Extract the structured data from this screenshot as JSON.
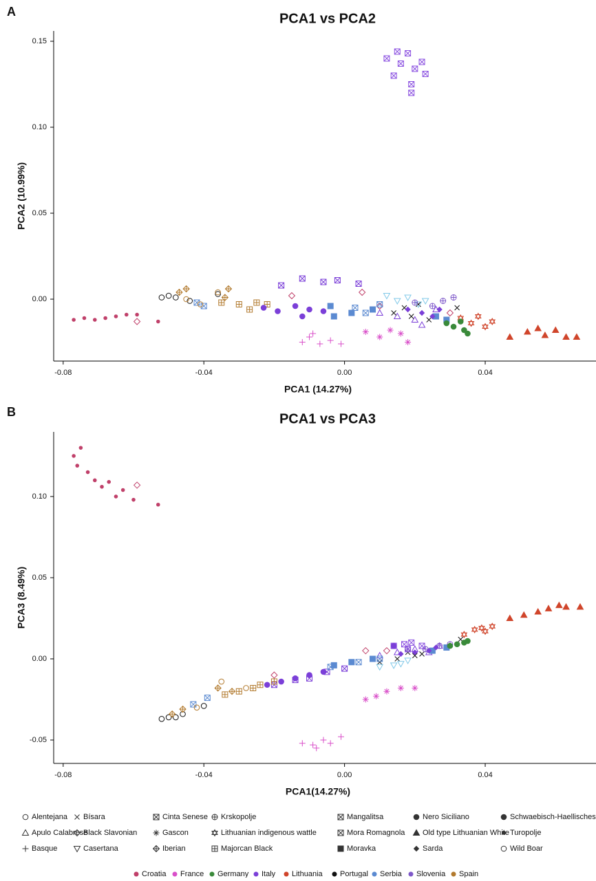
{
  "chart_data": [
    {
      "type": "scatter",
      "panel_label": "A",
      "title": "PCA1 vs PCA2",
      "xlabel": "PCA1 (14.27%)",
      "ylabel": "PCA2 (10.99%)",
      "xlim": [
        -0.0827,
        0.0715
      ],
      "ylim": [
        -0.036,
        0.156
      ],
      "xticks": [
        -0.08,
        -0.04,
        {
          "value": 0,
          "label": "0.00"
        },
        0.04
      ],
      "yticks": [
        {
          "value": 0,
          "label": "0.00"
        },
        0.05,
        {
          "value": 0.1,
          "label": "0.10"
        },
        0.15
      ],
      "series": [
        {
          "name": "Alentejana",
          "color": "#111111",
          "marker": "circle-open",
          "x": [
            -0.052,
            -0.05,
            -0.048,
            -0.044,
            -0.036
          ],
          "values": [
            0.001,
            0.002,
            0.001,
            -0.001,
            0.003
          ]
        },
        {
          "name": "Apulo Calabrese",
          "color": "#7b3fd8",
          "marker": "triangle-open",
          "x": [
            0.01,
            0.015,
            0.02,
            0.022,
            0.026
          ],
          "values": [
            -0.008,
            -0.01,
            -0.012,
            -0.015,
            -0.006
          ]
        },
        {
          "name": "Basque",
          "color": "#d94fc9",
          "marker": "plus",
          "x": [
            -0.012,
            -0.01,
            -0.007,
            -0.004,
            -0.001,
            -0.009
          ],
          "values": [
            -0.025,
            -0.022,
            -0.026,
            -0.024,
            -0.026,
            -0.02
          ]
        },
        {
          "name": "Bísara",
          "color": "#111111",
          "marker": "cross",
          "x": [
            0.014,
            0.017,
            0.019,
            0.021,
            0.024,
            0.032
          ],
          "values": [
            -0.008,
            -0.005,
            -0.01,
            -0.003,
            -0.012,
            -0.005
          ]
        },
        {
          "name": "Black Slavonian",
          "color": "#c0406a",
          "marker": "diamond-open",
          "x": [
            -0.059,
            -0.015,
            0.005,
            0.01,
            0.03
          ],
          "values": [
            -0.013,
            0.002,
            0.004,
            -0.004,
            -0.008
          ]
        },
        {
          "name": "Casertana",
          "color": "#80c8e8",
          "marker": "triangle-down-open",
          "x": [
            0.012,
            0.015,
            0.018,
            0.021,
            0.023
          ],
          "values": [
            0.002,
            -0.001,
            0.001,
            -0.003,
            -0.001
          ]
        },
        {
          "name": "Cinta Senese",
          "color": "#7b3fd8",
          "marker": "square-x",
          "x": [
            -0.018,
            -0.012,
            -0.006,
            -0.002,
            0.004
          ],
          "values": [
            0.008,
            0.012,
            0.01,
            0.011,
            0.009
          ]
        },
        {
          "name": "Gascon",
          "color": "#d94fc9",
          "marker": "asterisk",
          "x": [
            0.006,
            0.01,
            0.013,
            0.016,
            0.018
          ],
          "values": [
            -0.019,
            -0.022,
            -0.018,
            -0.02,
            -0.025
          ]
        },
        {
          "name": "Iberian",
          "color": "#b27a2e",
          "marker": "diamond-plus",
          "x": [
            -0.047,
            -0.045,
            -0.034,
            -0.033
          ],
          "values": [
            0.004,
            0.006,
            0.001,
            0.006
          ]
        },
        {
          "name": "Krskopolje",
          "color": "#7e58c9",
          "marker": "circle-plus",
          "x": [
            0.02,
            0.025,
            0.028,
            0.031
          ],
          "values": [
            -0.002,
            -0.004,
            -0.001,
            0.001
          ]
        },
        {
          "name": "Lithuanian indigenous wattle",
          "color": "#d0452b",
          "marker": "star-david",
          "x": [
            0.033,
            0.036,
            0.038,
            0.04,
            0.042
          ],
          "values": [
            -0.011,
            -0.014,
            -0.01,
            -0.016,
            -0.013
          ]
        },
        {
          "name": "Majorcan Black",
          "color": "#b27a2e",
          "marker": "square-plus",
          "x": [
            -0.035,
            -0.03,
            -0.027,
            -0.025,
            -0.022
          ],
          "values": [
            -0.002,
            -0.003,
            -0.006,
            -0.002,
            -0.003
          ]
        },
        {
          "name": "Mangalitsa",
          "color": "#5b8ad1",
          "marker": "square-x",
          "x": [
            -0.042,
            -0.04,
            0.003,
            0.006,
            0.01
          ],
          "values": [
            -0.002,
            -0.004,
            -0.005,
            -0.008,
            -0.003
          ]
        },
        {
          "name": "Mora Romagnola",
          "color": "#8a4fe0",
          "marker": "square-x",
          "x": [
            0.012,
            0.014,
            0.016,
            0.018,
            0.019,
            0.02,
            0.022,
            0.023,
            0.019,
            0.015
          ],
          "values": [
            0.14,
            0.13,
            0.137,
            0.143,
            0.125,
            0.134,
            0.138,
            0.131,
            0.12,
            0.144
          ]
        },
        {
          "name": "Moravka",
          "color": "#5b8ad1",
          "marker": "square-filled",
          "x": [
            -0.004,
            -0.003,
            0.002,
            0.008,
            0.026,
            0.029
          ],
          "values": [
            -0.004,
            -0.01,
            -0.008,
            -0.006,
            -0.01,
            -0.012
          ]
        },
        {
          "name": "Nero Siciliano",
          "color": "#7b3fd8",
          "marker": "circle-filled",
          "x": [
            -0.023,
            -0.019,
            -0.014,
            -0.01,
            -0.006,
            -0.012
          ],
          "values": [
            -0.005,
            -0.007,
            -0.004,
            -0.006,
            -0.007,
            -0.01
          ]
        },
        {
          "name": "Old type Lithuanian White",
          "color": "#d0452b",
          "marker": "triangle-filled",
          "x": [
            0.047,
            0.052,
            0.055,
            0.057,
            0.06,
            0.063,
            0.066
          ],
          "values": [
            -0.022,
            -0.019,
            -0.017,
            -0.021,
            -0.018,
            -0.022,
            -0.022
          ]
        },
        {
          "name": "Sarda",
          "color": "#7b3fd8",
          "marker": "diamond-filled",
          "x": [
            0.018,
            0.022,
            0.025,
            0.027
          ],
          "values": [
            -0.006,
            -0.008,
            -0.01,
            -0.006
          ]
        },
        {
          "name": "Schwaebisch-Haellisches",
          "color": "#3a8a3a",
          "marker": "circle-filled",
          "x": [
            0.029,
            0.031,
            0.033,
            0.034,
            0.035
          ],
          "values": [
            -0.014,
            -0.016,
            -0.013,
            -0.018,
            -0.02
          ]
        },
        {
          "name": "Turopolje",
          "color": "#c0406a",
          "marker": "dot",
          "x": [
            -0.077,
            -0.074,
            -0.071,
            -0.068,
            -0.065,
            -0.062,
            -0.059,
            -0.053
          ],
          "values": [
            -0.012,
            -0.011,
            -0.012,
            -0.011,
            -0.01,
            -0.009,
            -0.009,
            -0.013
          ]
        },
        {
          "name": "Wild Boar",
          "color": "#b27a2e",
          "marker": "circle-open",
          "x": [
            -0.036,
            -0.045,
            -0.041
          ],
          "values": [
            0.004,
            0.0,
            -0.003
          ]
        }
      ]
    },
    {
      "type": "scatter",
      "panel_label": "B",
      "title": "PCA1 vs PCA3",
      "xlabel": "PCA1(14.27%)",
      "ylabel": "PCA3 (8.49%)",
      "xlim": [
        -0.0827,
        0.0715
      ],
      "ylim": [
        -0.0644,
        0.1398
      ],
      "xticks": [
        -0.08,
        -0.04,
        {
          "value": 0,
          "label": "0.00"
        },
        0.04
      ],
      "yticks": [
        -0.05,
        {
          "value": 0,
          "label": "0.00"
        },
        0.05,
        {
          "value": 0.1,
          "label": "0.10"
        }
      ],
      "series": [
        {
          "x": [
            -0.052,
            -0.05,
            -0.048,
            -0.046,
            -0.04
          ],
          "values": [
            -0.037,
            -0.036,
            -0.036,
            -0.034,
            -0.029
          ]
        },
        {
          "x": [
            0.01,
            0.015,
            0.02,
            0.024,
            0.027
          ],
          "values": [
            0.002,
            0.004,
            0.006,
            0.004,
            0.008
          ]
        },
        {
          "x": [
            -0.012,
            -0.009,
            -0.006,
            -0.004,
            -0.001,
            -0.008
          ],
          "values": [
            -0.052,
            -0.053,
            -0.05,
            -0.052,
            -0.048,
            -0.055
          ]
        },
        {
          "x": [
            0.01,
            0.015,
            0.018,
            0.02,
            0.022,
            0.033
          ],
          "values": [
            -0.002,
            0.0,
            0.004,
            0.002,
            0.003,
            0.012
          ]
        },
        {
          "x": [
            -0.059,
            -0.02,
            0.006,
            0.012
          ],
          "values": [
            0.107,
            -0.01,
            0.005,
            0.005
          ]
        },
        {
          "x": [
            0.01,
            0.014,
            0.016,
            0.018
          ],
          "values": [
            -0.005,
            -0.004,
            -0.003,
            -0.001
          ]
        },
        {
          "x": [
            -0.02,
            -0.014,
            -0.01,
            -0.005,
            0.0
          ],
          "values": [
            -0.016,
            -0.013,
            -0.012,
            -0.008,
            -0.006
          ]
        },
        {
          "x": [
            0.006,
            0.009,
            0.012,
            0.016,
            0.02
          ],
          "values": [
            -0.025,
            -0.023,
            -0.02,
            -0.018,
            -0.018
          ]
        },
        {
          "x": [
            -0.049,
            -0.046,
            -0.036,
            -0.032
          ],
          "values": [
            -0.034,
            -0.031,
            -0.018,
            -0.02
          ]
        },
        {
          "x": [
            0.018,
            0.023,
            0.027,
            0.03
          ],
          "values": [
            0.006,
            0.006,
            0.008,
            0.009
          ]
        },
        {
          "x": [
            0.034,
            0.037,
            0.039,
            0.042,
            0.04
          ],
          "values": [
            0.015,
            0.018,
            0.019,
            0.02,
            0.017
          ]
        },
        {
          "x": [
            -0.034,
            -0.03,
            -0.026,
            -0.024,
            -0.02
          ],
          "values": [
            -0.022,
            -0.02,
            -0.018,
            -0.016,
            -0.014
          ]
        },
        {
          "x": [
            -0.043,
            -0.039,
            -0.004,
            0.004,
            0.01
          ],
          "values": [
            -0.028,
            -0.024,
            -0.005,
            -0.002,
            0.0
          ]
        },
        {
          "x": [
            0.014,
            0.017,
            0.019,
            0.022,
            0.018
          ],
          "values": [
            0.008,
            0.009,
            0.01,
            0.008,
            0.006
          ]
        },
        {
          "x": [
            -0.003,
            0.002,
            0.008,
            0.025,
            0.029
          ],
          "values": [
            -0.004,
            -0.002,
            0.0,
            0.005,
            0.007
          ]
        },
        {
          "x": [
            -0.022,
            -0.018,
            -0.014,
            -0.01,
            -0.006,
            0.014
          ],
          "values": [
            -0.016,
            -0.014,
            -0.012,
            -0.01,
            -0.008,
            0.008
          ]
        },
        {
          "x": [
            0.047,
            0.051,
            0.055,
            0.058,
            0.061,
            0.063,
            0.067
          ],
          "values": [
            0.025,
            0.027,
            0.029,
            0.031,
            0.033,
            0.032,
            0.032
          ]
        },
        {
          "x": [
            0.016,
            0.02,
            0.024,
            0.026
          ],
          "values": [
            0.003,
            0.004,
            0.005,
            0.007
          ]
        },
        {
          "x": [
            0.03,
            0.032,
            0.034,
            0.035
          ],
          "values": [
            0.008,
            0.009,
            0.01,
            0.011
          ]
        },
        {
          "x": [
            -0.077,
            -0.076,
            -0.075,
            -0.073,
            -0.071,
            -0.069,
            -0.067,
            -0.065,
            -0.063,
            -0.06,
            -0.053
          ],
          "values": [
            0.125,
            0.119,
            0.13,
            0.115,
            0.11,
            0.106,
            0.109,
            0.1,
            0.104,
            0.098,
            0.095
          ]
        },
        {
          "x": [
            -0.035,
            -0.042,
            -0.028
          ],
          "values": [
            -0.014,
            -0.03,
            -0.018
          ]
        }
      ]
    }
  ],
  "legend": {
    "countries": [
      {
        "name": "Croatia",
        "color": "#c0406a"
      },
      {
        "name": "France",
        "color": "#d94fc9"
      },
      {
        "name": "Germany",
        "color": "#3a8a3a"
      },
      {
        "name": "Italy",
        "color": "#7b3fd8"
      },
      {
        "name": "Lithuania",
        "color": "#d0452b"
      },
      {
        "name": "Portugal",
        "color": "#111111"
      },
      {
        "name": "Serbia",
        "color": "#5b8ad1"
      },
      {
        "name": "Slovenia",
        "color": "#7e58c9"
      },
      {
        "name": "Spain",
        "color": "#b27a2e"
      }
    ]
  }
}
